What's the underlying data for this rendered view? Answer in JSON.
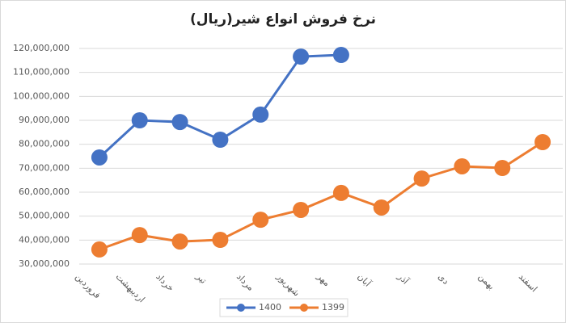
{
  "chart_data": {
    "type": "line",
    "title": "نرخ فروش انواع شیر(ریال)",
    "categories": [
      "فروردین",
      "اردیبهشت",
      "خرداد",
      "تیر",
      "مرداد",
      "شهریور",
      "مهر",
      "آبان",
      "آذر",
      "دی",
      "بهمن",
      "اسفند"
    ],
    "series": [
      {
        "name": "1400",
        "color": "#4472c4",
        "values": [
          74500000,
          90000000,
          89300000,
          81900000,
          92400000,
          116600000,
          117300000,
          null,
          null,
          null,
          null,
          null
        ]
      },
      {
        "name": "1399",
        "color": "#ed7d31",
        "values": [
          36100000,
          42100000,
          39400000,
          40100000,
          48500000,
          52600000,
          59700000,
          53600000,
          65700000,
          70800000,
          70100000,
          80900000
        ]
      }
    ],
    "ylim": [
      30000000,
      120000000
    ],
    "yticks": [
      {
        "value": 30000000,
        "label": "30,000,000"
      },
      {
        "value": 40000000,
        "label": "40,000,000"
      },
      {
        "value": 50000000,
        "label": "50,000,000"
      },
      {
        "value": 60000000,
        "label": "60,000,000"
      },
      {
        "value": 70000000,
        "label": "70,000,000"
      },
      {
        "value": 80000000,
        "label": "80,000,000"
      },
      {
        "value": 90000000,
        "label": "90,000,000"
      },
      {
        "value": 100000000,
        "label": "100,000,000"
      },
      {
        "value": 110000000,
        "label": "110,000,000"
      },
      {
        "value": 120000000,
        "label": "120,000,000"
      }
    ],
    "grid": true,
    "legend": "bottom"
  }
}
